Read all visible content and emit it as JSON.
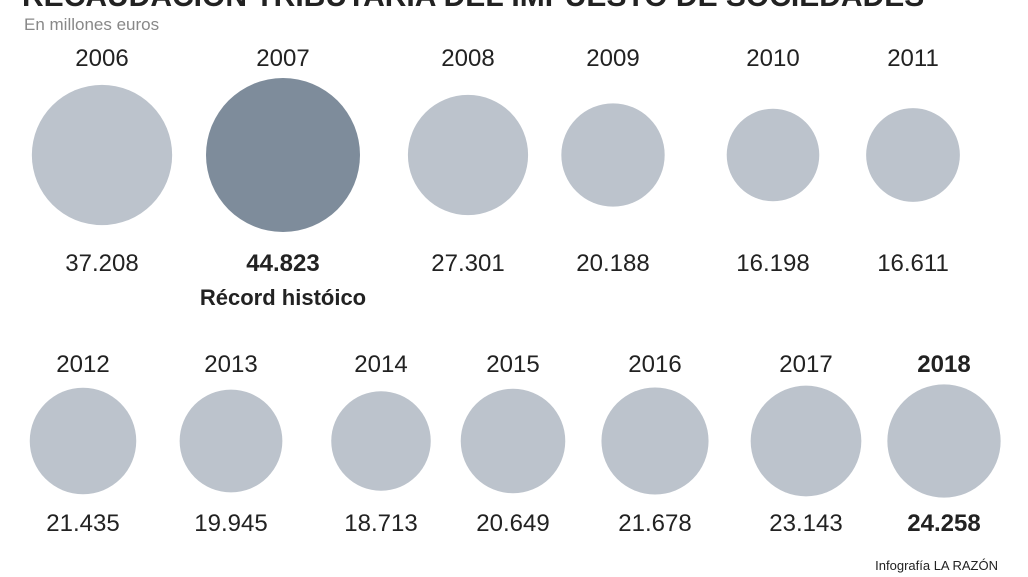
{
  "chart_data": {
    "type": "bubble",
    "title": "RECAUDACIÓN TRIBUTARIA DEL IMPUESTO DE SOCIEDADES",
    "subtitle": "En millones euros",
    "categories": [
      "2006",
      "2007",
      "2008",
      "2009",
      "2010",
      "2011",
      "2012",
      "2013",
      "2014",
      "2015",
      "2016",
      "2017",
      "2018"
    ],
    "values": [
      37208,
      44823,
      27301,
      20188,
      16198,
      16611,
      21435,
      19945,
      18713,
      20649,
      21678,
      23143,
      24258
    ],
    "value_labels": [
      "37.208",
      "44.823",
      "27.301",
      "20.188",
      "16.198",
      "16.611",
      "21.435",
      "19.945",
      "18.713",
      "20.649",
      "21.678",
      "23.143",
      "24.258"
    ],
    "colors": [
      "#bcc3cc",
      "#7e8c9b",
      "#bcc3cc",
      "#bcc3cc",
      "#bcc3cc",
      "#bcc3cc",
      "#bcc3cc",
      "#bcc3cc",
      "#bcc3cc",
      "#bcc3cc",
      "#bcc3cc",
      "#bcc3cc",
      "#bcc3cc"
    ],
    "annotation": "Récord históico",
    "source": "Infografía LA RAZÓN"
  }
}
